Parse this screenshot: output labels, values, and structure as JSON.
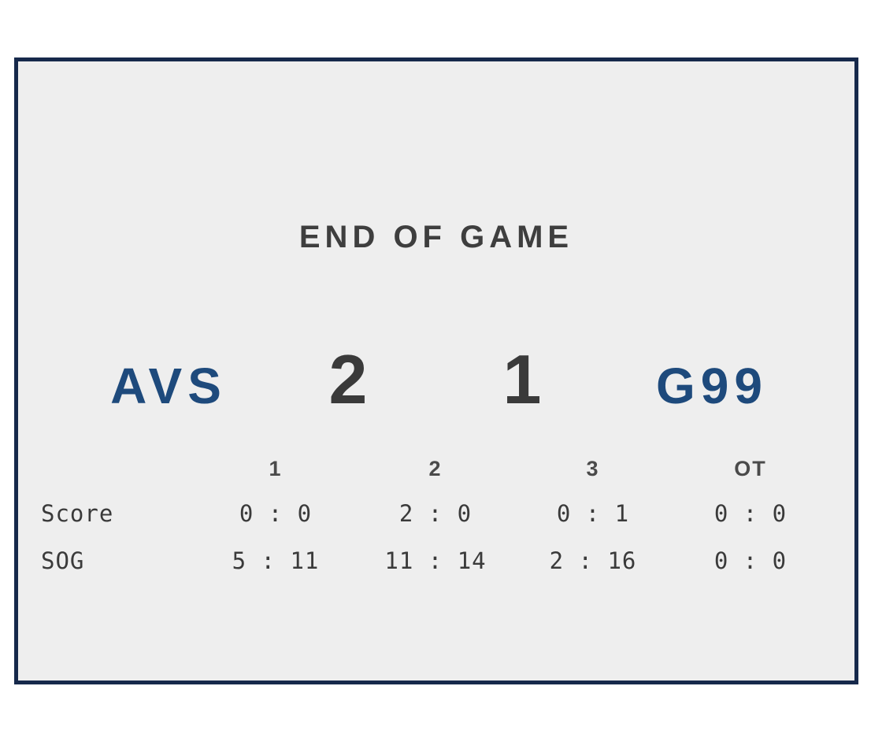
{
  "scoreboard": {
    "title": "END OF GAME",
    "teams": {
      "home": {
        "abbr": "AVS",
        "goals": "2"
      },
      "away": {
        "abbr": "G99",
        "goals": "1"
      }
    },
    "periods": [
      "1",
      "2",
      "3",
      "OT"
    ],
    "stats": [
      {
        "label": "Score",
        "values": [
          "0 : 0",
          "2 : 0",
          "0 : 1",
          "0 : 0"
        ]
      },
      {
        "label": "SOG",
        "values": [
          "5 : 11",
          "11 : 14",
          "2 : 16",
          "0 : 0"
        ]
      }
    ],
    "colors": {
      "panel_border": "#16294b",
      "panel_background": "#eeeeee",
      "team_text": "#1e4a7c",
      "score_text": "#3a3a3a",
      "title_text": "#3e3e3e",
      "header_text": "#4a4a4a",
      "outer_background": "#ffffff"
    }
  }
}
